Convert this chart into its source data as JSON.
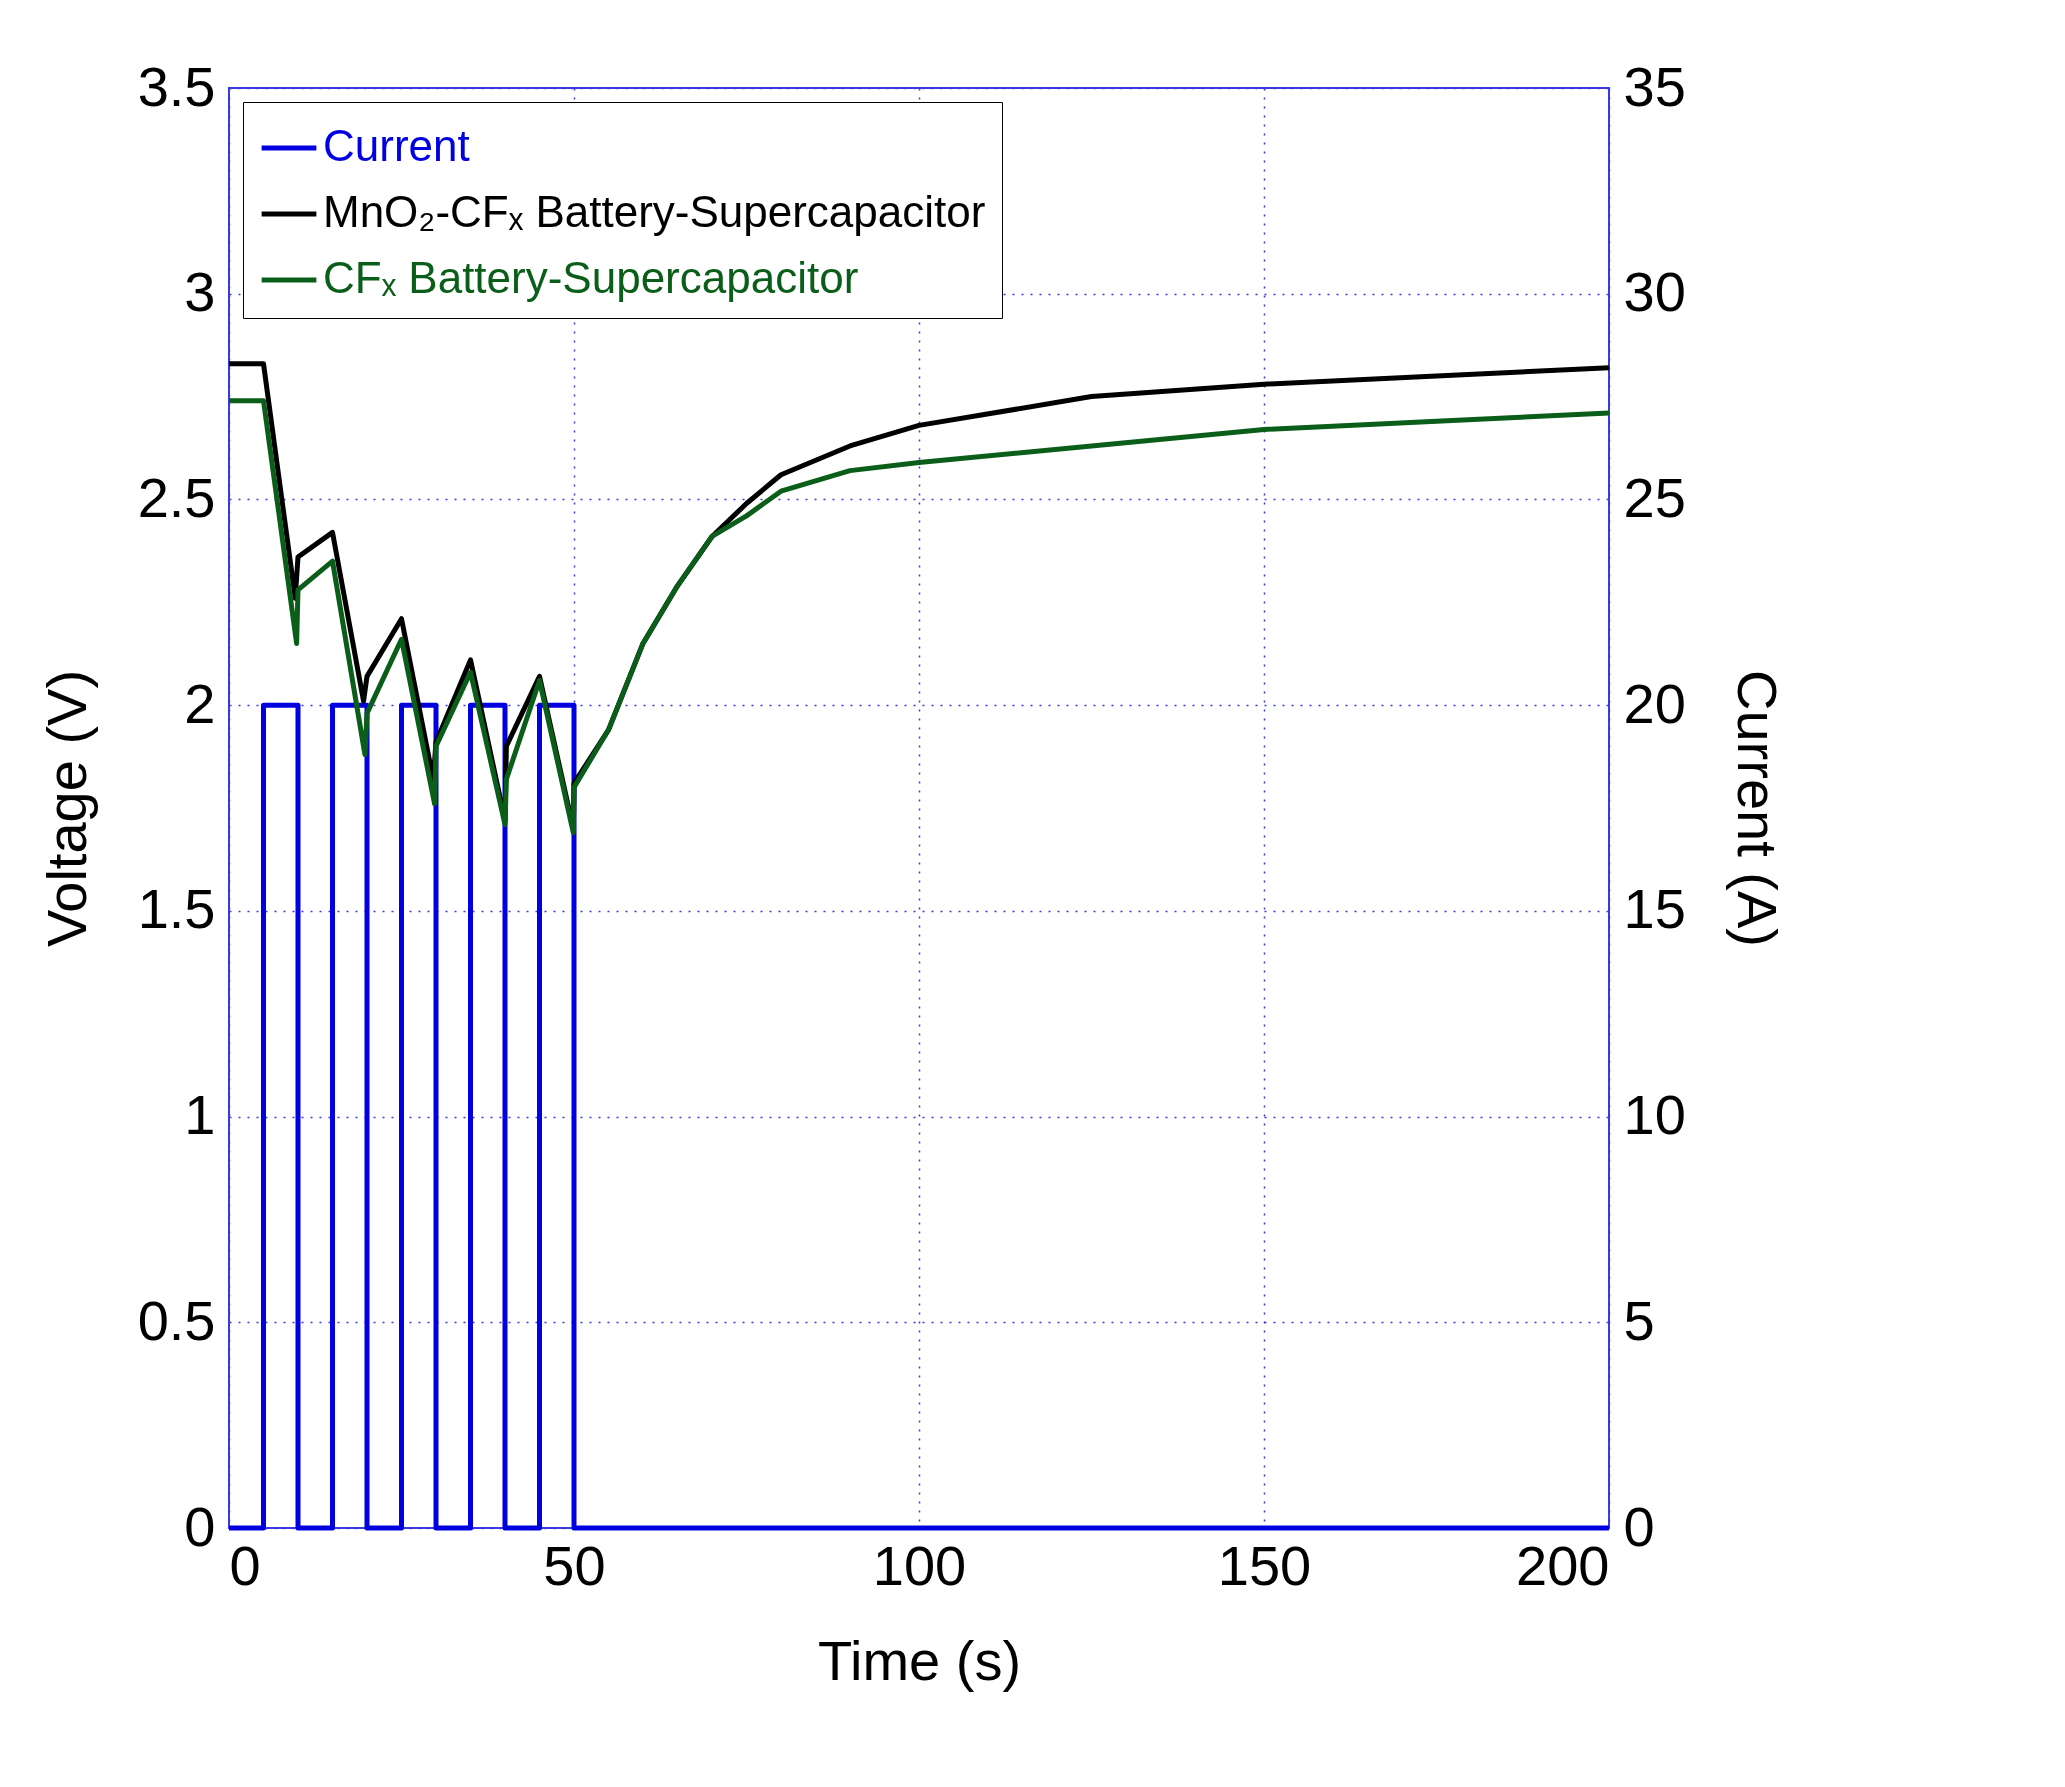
{
  "chart_data": {
    "type": "line",
    "xlabel": "Time (s)",
    "ylabel": "Voltage (V)",
    "y2label": "Current (A)",
    "xlim": [
      0,
      200
    ],
    "xticks": [
      0,
      50,
      100,
      150,
      200
    ],
    "ylim": [
      0,
      3.5
    ],
    "yticks": [
      0,
      0.5,
      1,
      1.5,
      2,
      2.5,
      3,
      3.5
    ],
    "y2lim": [
      0,
      35
    ],
    "y2ticks": [
      0,
      5,
      10,
      15,
      20,
      25,
      30,
      35
    ],
    "grid": true,
    "legend": "top",
    "line_style": "solid",
    "marker": "none",
    "series": [
      {
        "name": "Current",
        "type": "step",
        "axis": "y2",
        "color": "#0000e0",
        "x": [
          0,
          5,
          10,
          15,
          20,
          25,
          30,
          35,
          40,
          45,
          50,
          200
        ],
        "values": [
          0,
          20,
          0,
          20,
          0,
          20,
          0,
          20,
          0,
          20,
          0,
          0
        ]
      },
      {
        "name": "MnO₂-CFₓ Battery-Supercapacitor",
        "color": "#000000",
        "x": [
          0,
          5,
          9.6,
          10,
          15,
          19.5,
          20,
          25,
          29.6,
          30,
          35,
          40,
          40.2,
          45,
          49.9,
          50,
          55,
          60,
          65,
          70,
          75,
          80,
          90,
          100,
          125,
          150,
          175,
          200
        ],
        "values": [
          2.83,
          2.83,
          2.26,
          2.36,
          2.42,
          2.01,
          2.07,
          2.21,
          1.82,
          1.91,
          2.11,
          1.72,
          1.9,
          2.07,
          1.7,
          1.81,
          1.94,
          2.15,
          2.29,
          2.41,
          2.49,
          2.56,
          2.63,
          2.68,
          2.75,
          2.78,
          2.8,
          2.82
        ]
      },
      {
        "name": "CFₓ Battery-Supercapacitor",
        "color": "#0b5e1a",
        "x": [
          0,
          5,
          9.8,
          10,
          15,
          19.7,
          20,
          25,
          29.8,
          30,
          35,
          40,
          40.2,
          45,
          49.9,
          50,
          55,
          60,
          65,
          70,
          75,
          80,
          90,
          100,
          125,
          150,
          175,
          200
        ],
        "values": [
          2.74,
          2.74,
          2.15,
          2.28,
          2.35,
          1.88,
          1.98,
          2.16,
          1.76,
          1.9,
          2.08,
          1.71,
          1.82,
          2.06,
          1.69,
          1.8,
          1.94,
          2.15,
          2.29,
          2.41,
          2.46,
          2.52,
          2.57,
          2.59,
          2.63,
          2.67,
          2.69,
          2.71
        ]
      }
    ]
  }
}
